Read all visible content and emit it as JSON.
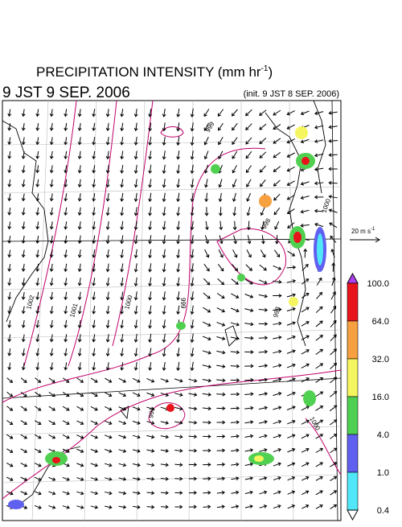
{
  "header": {
    "title": "PRECIPITATION INTENSITY (mm hr",
    "title_exp": "-1",
    "title_close": ")",
    "valid_time": "9 JST 9 SEP. 2006",
    "init_time": "(init. 9 JST 8 SEP. 2006)"
  },
  "wind_legend": {
    "label": "20 m s",
    "label_exp": "-1"
  },
  "colorbar": {
    "ticks": [
      {
        "value": 100,
        "label": "100.0"
      },
      {
        "value": 64,
        "label": "64.0"
      },
      {
        "value": 32,
        "label": "32.0"
      },
      {
        "value": 16,
        "label": "16.0"
      },
      {
        "value": 4,
        "label": "4.0"
      },
      {
        "value": 1,
        "label": "1.0"
      },
      0.4
    ],
    "colors": [
      "#e8141c",
      "#f7a040",
      "#f5f560",
      "#50d050",
      "#6060f0",
      "#50e8f8"
    ],
    "over_color": "#b040f0",
    "under_color": "#ffffff"
  },
  "contour_labels": [
    "1002",
    "1001",
    "1000",
    "999",
    "998",
    "998",
    "999",
    "999",
    "1000",
    "1000"
  ]
}
